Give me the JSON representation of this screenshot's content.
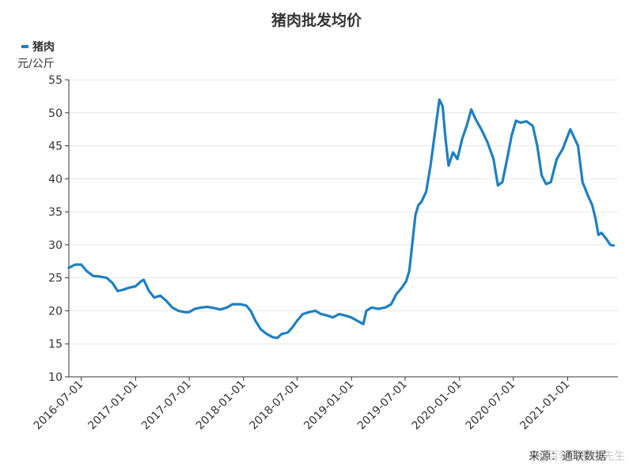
{
  "chart_data": {
    "type": "line",
    "title": "猪肉批发均价",
    "ylabel": "元/公斤",
    "ylim": [
      10,
      55
    ],
    "yticks": [
      10,
      15,
      20,
      25,
      30,
      35,
      40,
      45,
      50,
      55
    ],
    "xlim": [
      "2016-05-20",
      "2021-06-20"
    ],
    "xticks": [
      "2016-07-01",
      "2017-01-01",
      "2017-07-01",
      "2018-01-01",
      "2018-07-01",
      "2019-01-01",
      "2019-07-01",
      "2020-01-01",
      "2020-07-01",
      "2021-01-01"
    ],
    "grid": {
      "horizontal": true,
      "vertical": false
    },
    "legend_position": "top-left",
    "series": [
      {
        "name": "猪肉",
        "color": "#1f7fc1",
        "points": [
          [
            "2016-05-20",
            26.5
          ],
          [
            "2016-06-10",
            27.0
          ],
          [
            "2016-07-01",
            27.0
          ],
          [
            "2016-07-20",
            26.0
          ],
          [
            "2016-08-10",
            25.3
          ],
          [
            "2016-09-01",
            25.2
          ],
          [
            "2016-09-25",
            25.0
          ],
          [
            "2016-10-15",
            24.2
          ],
          [
            "2016-11-01",
            23.0
          ],
          [
            "2016-11-20",
            23.2
          ],
          [
            "2016-12-10",
            23.5
          ],
          [
            "2016-12-31",
            23.7
          ],
          [
            "2017-01-20",
            24.5
          ],
          [
            "2017-01-28",
            24.7
          ],
          [
            "2017-02-15",
            23.0
          ],
          [
            "2017-03-05",
            22.0
          ],
          [
            "2017-03-25",
            22.3
          ],
          [
            "2017-04-15",
            21.5
          ],
          [
            "2017-05-05",
            20.5
          ],
          [
            "2017-05-25",
            20.0
          ],
          [
            "2017-06-15",
            19.8
          ],
          [
            "2017-07-01",
            19.8
          ],
          [
            "2017-07-20",
            20.3
          ],
          [
            "2017-08-10",
            20.5
          ],
          [
            "2017-09-01",
            20.6
          ],
          [
            "2017-09-25",
            20.4
          ],
          [
            "2017-10-15",
            20.2
          ],
          [
            "2017-11-05",
            20.5
          ],
          [
            "2017-11-25",
            21.0
          ],
          [
            "2017-12-20",
            21.0
          ],
          [
            "2018-01-10",
            20.8
          ],
          [
            "2018-01-25",
            20.0
          ],
          [
            "2018-02-10",
            18.5
          ],
          [
            "2018-02-28",
            17.2
          ],
          [
            "2018-03-20",
            16.5
          ],
          [
            "2018-04-10",
            16.0
          ],
          [
            "2018-04-25",
            15.9
          ],
          [
            "2018-05-10",
            16.5
          ],
          [
            "2018-05-30",
            16.7
          ],
          [
            "2018-06-15",
            17.5
          ],
          [
            "2018-07-01",
            18.5
          ],
          [
            "2018-07-20",
            19.5
          ],
          [
            "2018-08-10",
            19.8
          ],
          [
            "2018-09-01",
            20.0
          ],
          [
            "2018-09-20",
            19.5
          ],
          [
            "2018-10-10",
            19.3
          ],
          [
            "2018-10-30",
            19.0
          ],
          [
            "2018-11-20",
            19.5
          ],
          [
            "2018-12-10",
            19.3
          ],
          [
            "2018-12-31",
            19.0
          ],
          [
            "2019-01-20",
            18.5
          ],
          [
            "2019-02-10",
            18.0
          ],
          [
            "2019-02-20",
            20.0
          ],
          [
            "2019-03-10",
            20.5
          ],
          [
            "2019-04-01",
            20.3
          ],
          [
            "2019-04-25",
            20.5
          ],
          [
            "2019-05-15",
            21.0
          ],
          [
            "2019-06-01",
            22.5
          ],
          [
            "2019-06-20",
            23.5
          ],
          [
            "2019-07-05",
            24.5
          ],
          [
            "2019-07-15",
            26.0
          ],
          [
            "2019-07-25",
            30.0
          ],
          [
            "2019-08-05",
            34.5
          ],
          [
            "2019-08-15",
            36.0
          ],
          [
            "2019-08-25",
            36.5
          ],
          [
            "2019-09-10",
            38.0
          ],
          [
            "2019-09-25",
            42.0
          ],
          [
            "2019-10-10",
            47.0
          ],
          [
            "2019-10-25",
            52.0
          ],
          [
            "2019-11-05",
            51.0
          ],
          [
            "2019-11-15",
            46.0
          ],
          [
            "2019-11-25",
            42.0
          ],
          [
            "2019-12-10",
            44.0
          ],
          [
            "2019-12-25",
            43.0
          ],
          [
            "2020-01-10",
            46.0
          ],
          [
            "2020-01-25",
            48.0
          ],
          [
            "2020-02-10",
            50.5
          ],
          [
            "2020-02-25",
            49.0
          ],
          [
            "2020-03-15",
            47.5
          ],
          [
            "2020-04-05",
            45.5
          ],
          [
            "2020-04-25",
            43.0
          ],
          [
            "2020-05-10",
            39.0
          ],
          [
            "2020-05-25",
            39.5
          ],
          [
            "2020-06-10",
            43.0
          ],
          [
            "2020-06-25",
            46.5
          ],
          [
            "2020-07-10",
            48.8
          ],
          [
            "2020-07-25",
            48.5
          ],
          [
            "2020-08-15",
            48.7
          ],
          [
            "2020-09-05",
            48.0
          ],
          [
            "2020-09-20",
            45.0
          ],
          [
            "2020-10-05",
            40.5
          ],
          [
            "2020-10-20",
            39.2
          ],
          [
            "2020-11-05",
            39.5
          ],
          [
            "2020-11-25",
            43.0
          ],
          [
            "2020-12-15",
            44.5
          ],
          [
            "2021-01-01",
            46.5
          ],
          [
            "2021-01-10",
            47.5
          ],
          [
            "2021-01-20",
            46.5
          ],
          [
            "2021-02-05",
            45.0
          ],
          [
            "2021-02-20",
            39.5
          ],
          [
            "2021-03-10",
            37.5
          ],
          [
            "2021-03-25",
            36.0
          ],
          [
            "2021-04-05",
            34.0
          ],
          [
            "2021-04-15",
            31.5
          ],
          [
            "2021-04-25",
            31.8
          ],
          [
            "2021-05-10",
            31.0
          ],
          [
            "2021-05-25",
            30.0
          ],
          [
            "2021-06-05",
            29.9
          ]
        ]
      }
    ]
  },
  "legend": {
    "label": "猪肉"
  },
  "unit_label": "元/公斤",
  "source": "来源：通联数据",
  "watermark": "@百年的菲尔先生"
}
